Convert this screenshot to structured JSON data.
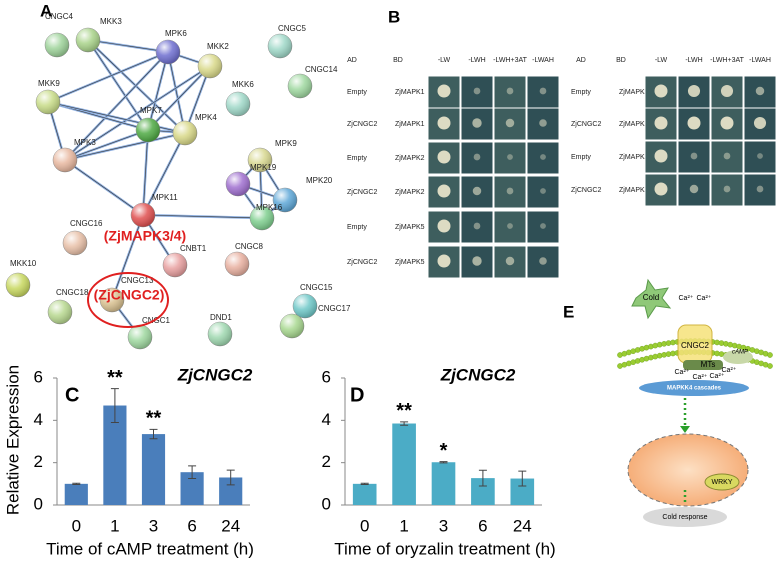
{
  "network": {
    "label": "A",
    "nodes": [
      {
        "label": "CNGC4"
      },
      {
        "label": "MKK3"
      },
      {
        "label": "MPK6"
      },
      {
        "label": "MKK2"
      },
      {
        "label": "CNGC5"
      },
      {
        "label": "CNGC14"
      },
      {
        "label": "MKK9"
      },
      {
        "label": "MKK6"
      },
      {
        "label": "MPK7"
      },
      {
        "label": "MPK4"
      },
      {
        "label": "MPK9"
      },
      {
        "label": "MPK19"
      },
      {
        "label": "MPK20"
      },
      {
        "label": "MPK16"
      },
      {
        "label": "MPK3"
      },
      {
        "label": "MPK11"
      },
      {
        "label": "CNGC16"
      },
      {
        "label": "CNGC8"
      },
      {
        "label": "MKK10"
      },
      {
        "label": "CNBT1"
      },
      {
        "label": "CNGC18"
      },
      {
        "label": "CNGC13"
      },
      {
        "label": "CNGC15"
      },
      {
        "label": "CNGC17"
      },
      {
        "label": "DND1"
      },
      {
        "label": "CNGC1"
      }
    ],
    "annotations": [
      "(ZjMAPK3/4)",
      "(ZjCNGC2)"
    ]
  },
  "yeast": {
    "label": "B",
    "left": {
      "headers": [
        "AD",
        "BD",
        "-LW",
        "-LWH",
        "-LWH+3AT",
        "-LWAH"
      ],
      "rows": [
        [
          "Empty",
          "ZjMAPK1"
        ],
        [
          "ZjCNGC2",
          "ZjMAPK1"
        ],
        [
          "Empty",
          "ZjMAPK2"
        ],
        [
          "ZjCNGC2",
          "ZjMAPK2"
        ],
        [
          "Empty",
          "ZjMAPK5"
        ],
        [
          "ZjCNGC2",
          "ZjMAPK5"
        ]
      ]
    },
    "right": {
      "headers": [
        "AD",
        "BD",
        "-LW",
        "-LWH",
        "-LWH+3AT",
        "-LWAH"
      ],
      "rows": [
        [
          "Empty",
          "ZjMAPKK4"
        ],
        [
          "ZjCNGC2",
          "ZjMAPKK4"
        ],
        [
          "Empty",
          "ZjMAPKK9"
        ],
        [
          "ZjCNGC2",
          "ZjMAPKK9"
        ]
      ]
    }
  },
  "chart_data": [
    {
      "type": "bar",
      "panel_label": "C",
      "title": "ZjCNGC2",
      "x_label": "Time of cAMP treatment (h)",
      "y_label": "Relative Expression",
      "categories": [
        "0",
        "1",
        "3",
        "6",
        "24"
      ],
      "values": [
        1,
        4.7,
        3.35,
        1.55,
        1.3
      ],
      "errors": [
        0.03,
        0.8,
        0.22,
        0.3,
        0.35
      ],
      "significance": [
        null,
        "**",
        "**",
        null,
        null
      ],
      "color": "#4a7ebb",
      "ylim": [
        0,
        6
      ],
      "yticks": [
        0,
        2,
        4,
        6
      ]
    },
    {
      "type": "bar",
      "panel_label": "D",
      "title": "ZjCNGC2",
      "x_label": "Time of oryzalin treatment (h)",
      "categories": [
        "0",
        "1",
        "3",
        "6",
        "24"
      ],
      "values": [
        1,
        3.85,
        2.02,
        1.27,
        1.25
      ],
      "errors": [
        0.03,
        0.08,
        0.03,
        0.37,
        0.35
      ],
      "significance": [
        null,
        "**",
        "*",
        null,
        null
      ],
      "color": "#4bacc6",
      "ylim": [
        0,
        6
      ],
      "yticks": [
        0,
        2,
        4,
        6
      ]
    }
  ],
  "diagram": {
    "label": "E",
    "cold": "Cold",
    "calcium": [
      "Ca²⁺",
      "Ca²⁺",
      "Ca²⁺",
      "Ca²⁺",
      "Ca²⁺",
      "Ca²⁺"
    ],
    "channel": "CNGC2",
    "microtubules": "MTs",
    "camp": "cAMP",
    "cascade": "MAPKK4 cascades",
    "tf": "WRKY",
    "response": "Cold response"
  }
}
